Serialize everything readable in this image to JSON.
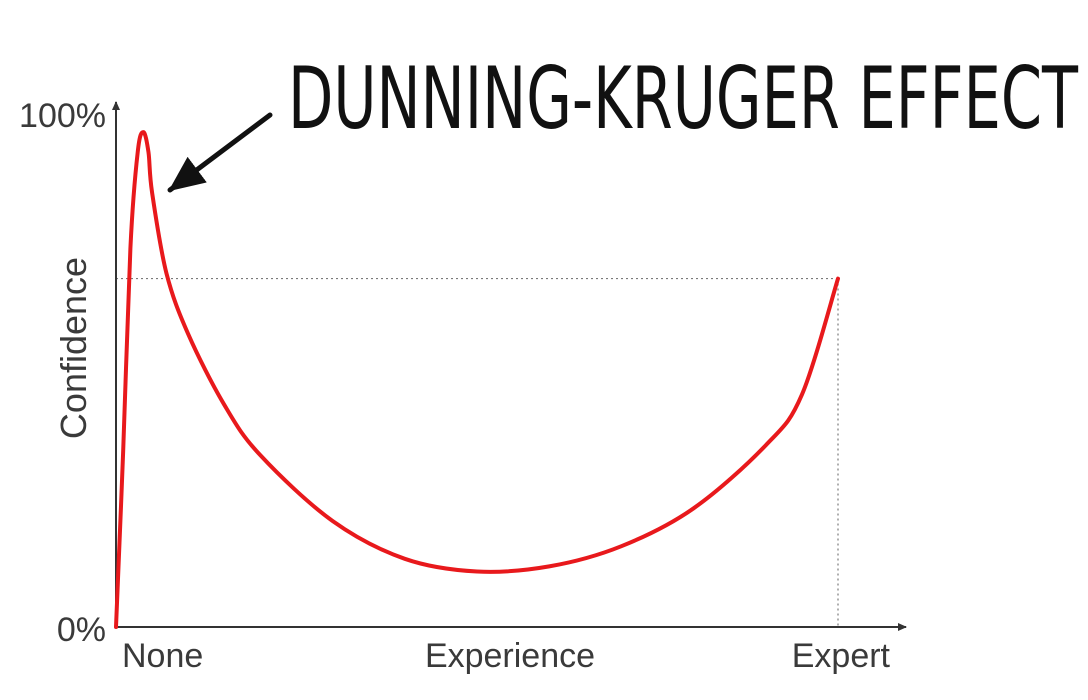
{
  "chart_data": {
    "type": "line",
    "title": "DUNNING-KRUGER EFFECT",
    "xlabel": "Experience",
    "ylabel": "Confidence",
    "x_tick_labels": [
      "None",
      "Experience",
      "Expert"
    ],
    "y_tick_labels": [
      "0%",
      "100%"
    ],
    "xlim": [
      0,
      100
    ],
    "ylim": [
      0,
      100
    ],
    "grid": false,
    "series": [
      {
        "color": "#e8191c",
        "x": [
          0,
          1,
          2,
          3,
          3.8,
          4.5,
          5,
          7,
          10,
          15,
          20,
          30,
          40,
          50,
          60,
          70,
          80,
          90,
          95,
          100
        ],
        "y": [
          0,
          35,
          75,
          94,
          98,
          94,
          86,
          70,
          58,
          44,
          34,
          21,
          13.5,
          11,
          12,
          16,
          23.5,
          36,
          46,
          69
        ]
      }
    ],
    "annotations": [
      {
        "text": "DUNNING-KRUGER EFFECT",
        "points_to": {
          "x": 3.8,
          "y": 98
        }
      }
    ],
    "reference_lines": [
      {
        "type": "horizontal",
        "y": 69
      },
      {
        "type": "vertical",
        "x": 100
      }
    ],
    "colors": {
      "curve": "#e8191c",
      "axis": "#333333",
      "reference": "#7a7a7a"
    }
  }
}
